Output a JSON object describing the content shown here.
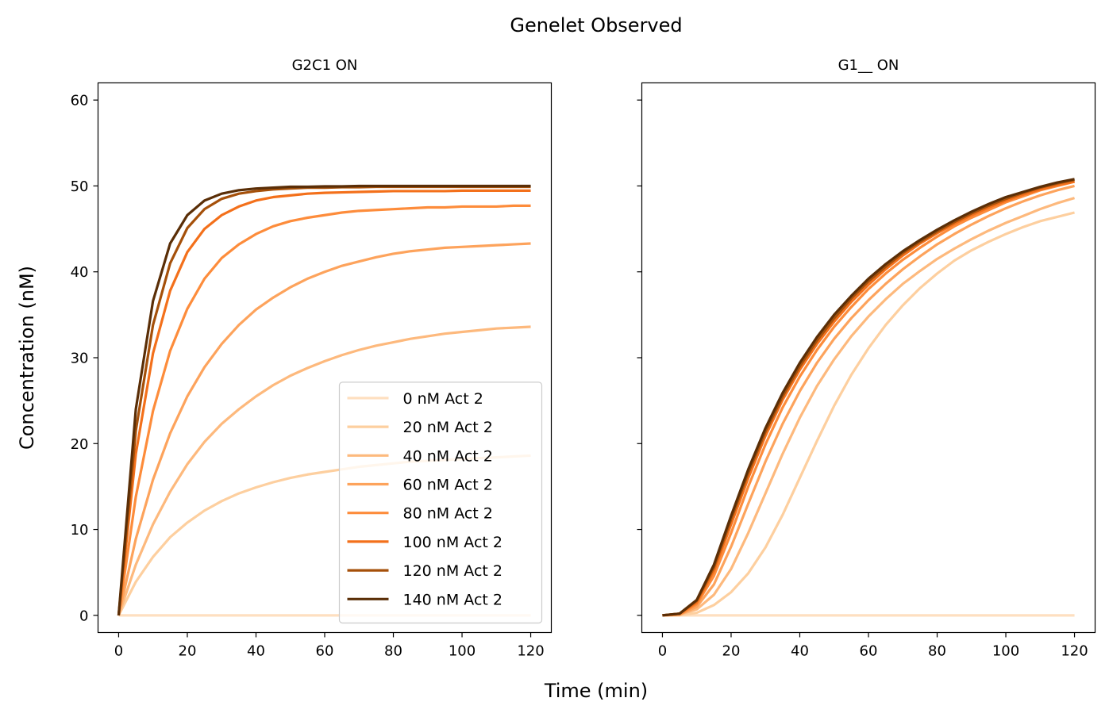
{
  "figure": {
    "title": "Genelet Observed",
    "xlabel": "Time (min)",
    "ylabel": "Concentration (nM)"
  },
  "chart_data": [
    {
      "type": "line",
      "title": "G2C1 ON",
      "xlim": [
        -6,
        126
      ],
      "ylim": [
        -2,
        62
      ],
      "xticks": [
        0,
        20,
        40,
        60,
        80,
        100,
        120
      ],
      "yticks": [
        0,
        10,
        20,
        30,
        40,
        50,
        60
      ],
      "show_ytick_labels": true,
      "legend": {
        "placement": "lower-right"
      },
      "x": [
        0,
        5,
        10,
        15,
        20,
        25,
        30,
        35,
        40,
        45,
        50,
        55,
        60,
        65,
        70,
        75,
        80,
        85,
        90,
        95,
        100,
        105,
        110,
        115,
        120
      ],
      "series": [
        {
          "name": "0 nM Act 2",
          "color": "#fedfc0",
          "values": [
            0,
            0,
            0,
            0,
            0,
            0,
            0,
            0,
            0,
            0,
            0,
            0,
            0,
            0,
            0,
            0,
            0,
            0,
            0,
            0,
            0,
            0,
            0,
            0,
            0
          ]
        },
        {
          "name": "20 nM Act 2",
          "color": "#fdcf9f",
          "values": [
            0,
            3.9,
            6.8,
            9.1,
            10.8,
            12.2,
            13.3,
            14.2,
            14.9,
            15.5,
            16.0,
            16.4,
            16.7,
            17.0,
            17.3,
            17.5,
            17.7,
            17.9,
            18.0,
            18.1,
            18.2,
            18.3,
            18.4,
            18.5,
            18.6
          ]
        },
        {
          "name": "40 nM Act 2",
          "color": "#fdb97d",
          "values": [
            0,
            5.9,
            10.6,
            14.4,
            17.6,
            20.2,
            22.3,
            24.0,
            25.5,
            26.8,
            27.9,
            28.8,
            29.6,
            30.3,
            30.9,
            31.4,
            31.8,
            32.2,
            32.5,
            32.8,
            33.0,
            33.2,
            33.4,
            33.5,
            33.6
          ]
        },
        {
          "name": "60 nM Act 2",
          "color": "#fda35c",
          "values": [
            0,
            8.9,
            15.8,
            21.2,
            25.5,
            28.9,
            31.6,
            33.8,
            35.6,
            37.0,
            38.2,
            39.2,
            40.0,
            40.7,
            41.2,
            41.7,
            42.1,
            42.4,
            42.6,
            42.8,
            42.9,
            43.0,
            43.1,
            43.2,
            43.3
          ]
        },
        {
          "name": "80 nM Act 2",
          "color": "#fd8c3b",
          "values": [
            0,
            13.8,
            23.8,
            30.8,
            35.7,
            39.2,
            41.6,
            43.2,
            44.4,
            45.3,
            45.9,
            46.3,
            46.6,
            46.9,
            47.1,
            47.2,
            47.3,
            47.4,
            47.5,
            47.5,
            47.6,
            47.6,
            47.6,
            47.7,
            47.7
          ]
        },
        {
          "name": "100 nM Act 2",
          "color": "#f3701b",
          "values": [
            0,
            18.8,
            30.5,
            37.8,
            42.3,
            45.0,
            46.6,
            47.6,
            48.3,
            48.7,
            48.9,
            49.1,
            49.2,
            49.25,
            49.3,
            49.35,
            49.4,
            49.4,
            49.4,
            49.4,
            49.45,
            49.45,
            49.45,
            49.45,
            49.45
          ]
        },
        {
          "name": "120 nM Act 2",
          "color": "#a5500a",
          "values": [
            0,
            21.5,
            33.8,
            41.0,
            45.1,
            47.3,
            48.5,
            49.1,
            49.4,
            49.6,
            49.7,
            49.8,
            49.8,
            49.85,
            49.85,
            49.9,
            49.9,
            49.9,
            49.9,
            49.9,
            49.9,
            49.9,
            49.9,
            49.9,
            49.9
          ]
        },
        {
          "name": "140 nM Act 2",
          "color": "#5a2e07",
          "values": [
            0,
            24.0,
            36.6,
            43.3,
            46.6,
            48.3,
            49.1,
            49.5,
            49.7,
            49.8,
            49.9,
            49.9,
            49.95,
            49.95,
            50,
            50,
            50,
            50,
            50,
            50,
            50,
            50,
            50,
            50,
            50
          ]
        }
      ]
    },
    {
      "type": "line",
      "title": "G1__ ON",
      "xlim": [
        -6,
        126
      ],
      "ylim": [
        -2,
        62
      ],
      "xticks": [
        0,
        20,
        40,
        60,
        80,
        100,
        120
      ],
      "yticks": [
        0,
        10,
        20,
        30,
        40,
        50,
        60
      ],
      "show_ytick_labels": false,
      "x": [
        0,
        5,
        10,
        15,
        20,
        25,
        30,
        35,
        40,
        45,
        50,
        55,
        60,
        65,
        70,
        75,
        80,
        85,
        90,
        95,
        100,
        105,
        110,
        115,
        120
      ],
      "series": [
        {
          "name": "0 nM Act 2",
          "color": "#fedfc0",
          "values": [
            0,
            0,
            0,
            0,
            0,
            0,
            0,
            0,
            0,
            0,
            0,
            0,
            0,
            0,
            0,
            0,
            0,
            0,
            0,
            0,
            0,
            0,
            0,
            0,
            0
          ]
        },
        {
          "name": "20 nM Act 2",
          "color": "#fdcf9f",
          "values": [
            0,
            0,
            0.3,
            1.2,
            2.7,
            4.9,
            7.9,
            11.7,
            16.0,
            20.3,
            24.4,
            28.0,
            31.1,
            33.8,
            36.1,
            38.1,
            39.8,
            41.3,
            42.5,
            43.5,
            44.4,
            45.2,
            45.9,
            46.4,
            46.9
          ]
        },
        {
          "name": "40 nM Act 2",
          "color": "#fdb97d",
          "values": [
            0,
            0.1,
            0.7,
            2.4,
            5.4,
            9.6,
            14.2,
            18.8,
            23.0,
            26.7,
            29.8,
            32.5,
            34.8,
            36.8,
            38.6,
            40.1,
            41.5,
            42.7,
            43.8,
            44.8,
            45.7,
            46.5,
            47.3,
            48.0,
            48.6
          ]
        },
        {
          "name": "60 nM Act 2",
          "color": "#fda35c",
          "values": [
            0,
            0.1,
            1.0,
            3.6,
            8.0,
            13.0,
            17.9,
            22.3,
            26.1,
            29.4,
            32.2,
            34.6,
            36.7,
            38.6,
            40.3,
            41.8,
            43.2,
            44.4,
            45.5,
            46.5,
            47.4,
            48.2,
            48.9,
            49.5,
            50.0
          ]
        },
        {
          "name": "80 nM Act 2",
          "color": "#fd8c3b",
          "values": [
            0,
            0.1,
            1.3,
            4.6,
            9.6,
            15.0,
            19.9,
            24.2,
            27.8,
            30.9,
            33.6,
            35.9,
            38.0,
            39.8,
            41.4,
            42.8,
            44.1,
            45.3,
            46.3,
            47.2,
            48.1,
            48.8,
            49.5,
            50.0,
            50.5
          ]
        },
        {
          "name": "100 nM Act 2",
          "color": "#f3701b",
          "values": [
            0,
            0.2,
            1.5,
            5.2,
            10.6,
            16.0,
            20.9,
            25.1,
            28.6,
            31.6,
            34.2,
            36.5,
            38.5,
            40.3,
            41.9,
            43.3,
            44.5,
            45.6,
            46.6,
            47.5,
            48.3,
            49.0,
            49.6,
            50.1,
            50.5
          ]
        },
        {
          "name": "120 nM Act 2",
          "color": "#a5500a",
          "values": [
            0,
            0.2,
            1.7,
            5.6,
            11.2,
            16.6,
            21.4,
            25.5,
            29.0,
            32.0,
            34.6,
            36.9,
            38.9,
            40.6,
            42.2,
            43.5,
            44.7,
            45.8,
            46.8,
            47.7,
            48.5,
            49.2,
            49.8,
            50.3,
            50.7
          ]
        },
        {
          "name": "140 nM Act 2",
          "color": "#5a2e07",
          "values": [
            0,
            0.2,
            1.8,
            5.9,
            11.6,
            17.0,
            21.8,
            25.9,
            29.4,
            32.4,
            35.0,
            37.2,
            39.2,
            40.9,
            42.4,
            43.7,
            44.9,
            46.0,
            47.0,
            47.9,
            48.7,
            49.3,
            49.9,
            50.4,
            50.8
          ]
        }
      ]
    }
  ]
}
